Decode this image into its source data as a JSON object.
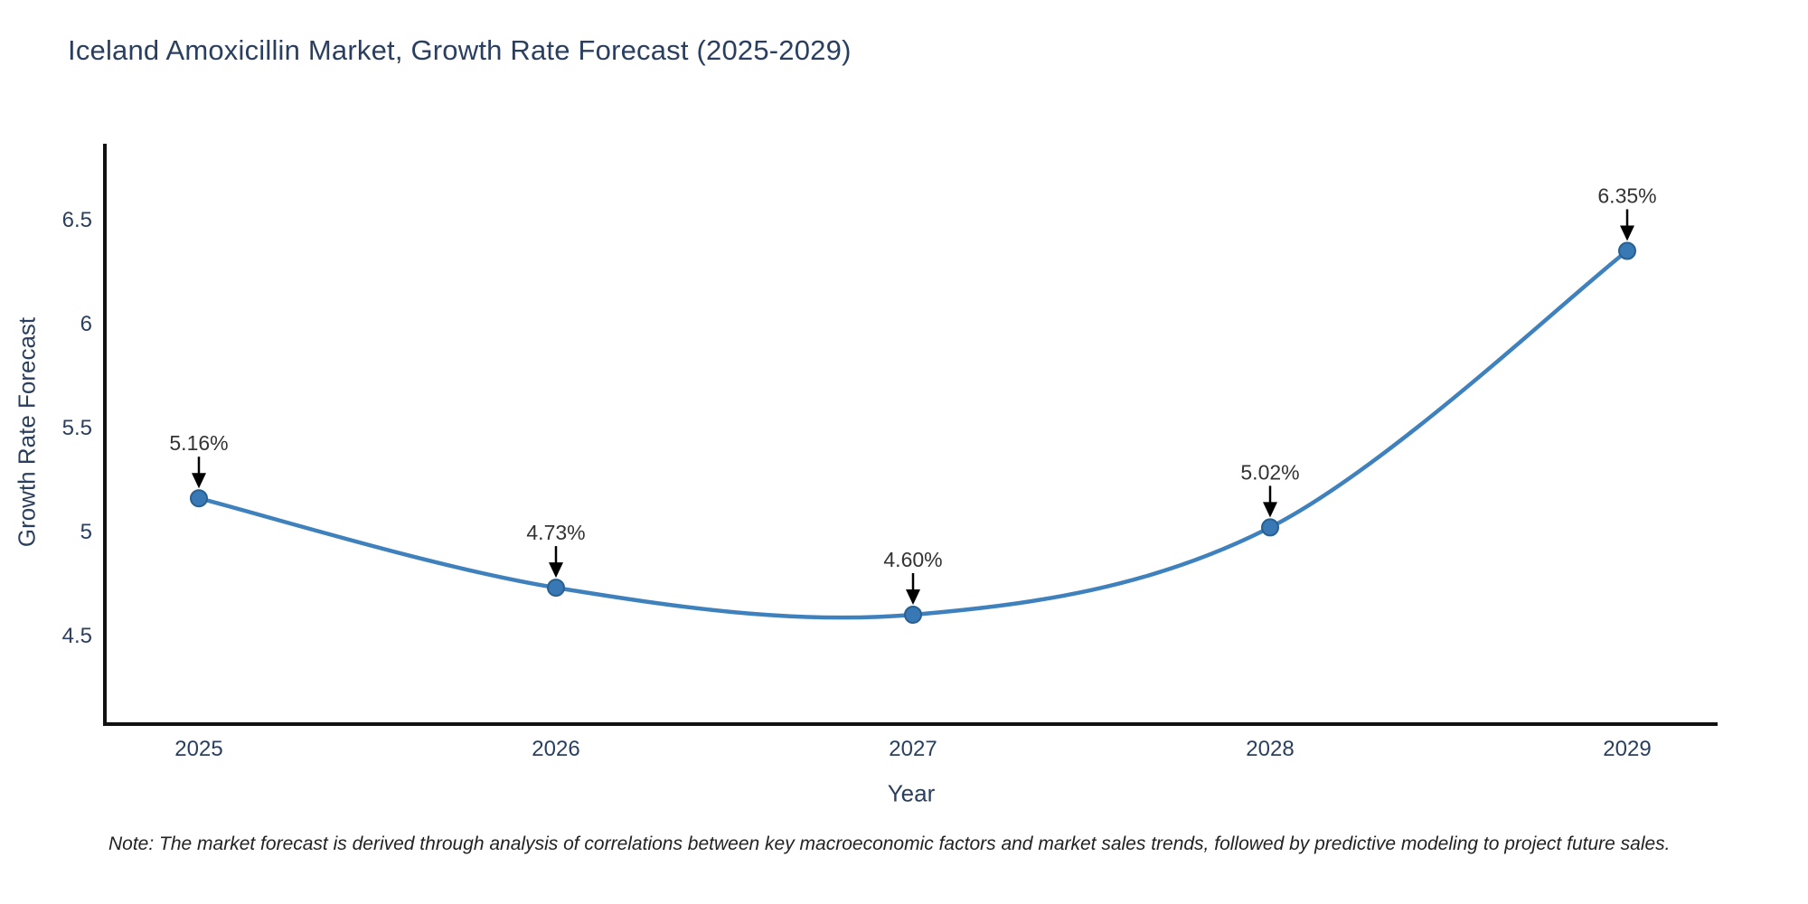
{
  "note": "Note: The market forecast is derived through analysis of correlations between key macroeconomic factors and market sales trends, followed by predictive modeling to project future sales.",
  "chart_data": {
    "type": "line",
    "line_shape": "spline",
    "title": "Iceland Amoxicillin Market, Growth Rate Forecast (2025-2029)",
    "xlabel": "Year",
    "ylabel": "Growth Rate Forecast",
    "categories": [
      "2025",
      "2026",
      "2027",
      "2028",
      "2029"
    ],
    "series": [
      {
        "name": "Growth Rate Forecast",
        "values": [
          5.16,
          4.73,
          4.6,
          5.02,
          6.35
        ],
        "point_labels": [
          "5.16%",
          "4.73%",
          "4.60%",
          "5.02%",
          "6.35%"
        ]
      }
    ],
    "yticks": [
      4.5,
      5.0,
      5.5,
      6.0,
      6.5
    ],
    "ylim": [
      4.08,
      6.87
    ],
    "grid": false,
    "legend": "none",
    "annotations_style": "label-with-down-arrow",
    "colors": {
      "line": "#3f81bd",
      "marker_fill": "#3878b4",
      "marker_border": "#29608f",
      "axis": "#111111",
      "tick_text": "#2a3f5f",
      "annotation_text": "#333333",
      "arrow": "#000000",
      "background": "#ffffff"
    }
  }
}
